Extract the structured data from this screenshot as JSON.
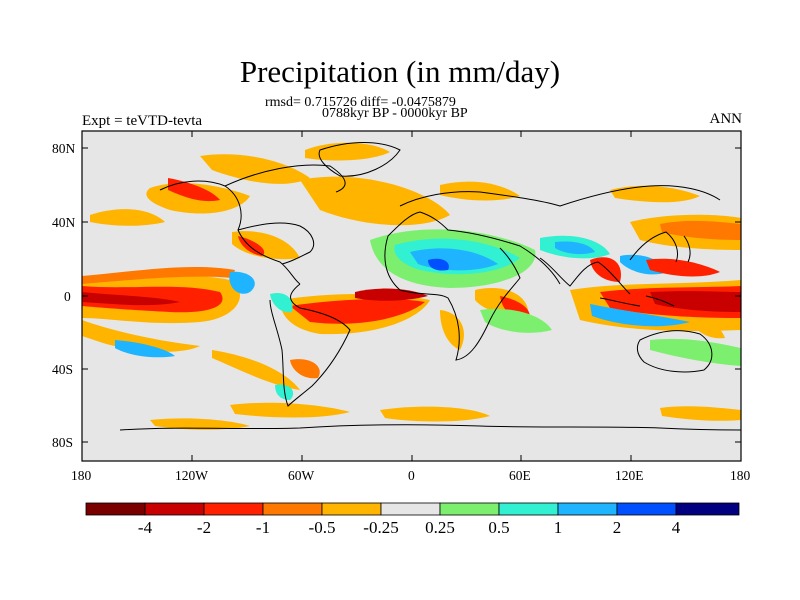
{
  "title": "Precipitation (in mm/day)",
  "stats_line": "rmsd= 0.715726 diff= -0.0475879",
  "period_line": "0788kyr BP - 0000kyr BP",
  "left_label": "Expt = teVTD-tevta",
  "right_label": "ANN",
  "y_ticks": [
    "80N",
    "40N",
    "0",
    "40S",
    "80S"
  ],
  "x_ticks": [
    "180",
    "120W",
    "60W",
    "0",
    "60E",
    "120E",
    "180"
  ],
  "colorbar": {
    "labels": [
      "-4",
      "-2",
      "-1",
      "-0.5",
      "-0.25",
      "0.25",
      "0.5",
      "1",
      "2",
      "4"
    ],
    "colors": [
      "#7a0000",
      "#c80000",
      "#ff2000",
      "#ff7800",
      "#ffb400",
      "#e6e6e6",
      "#7cf06e",
      "#32f0d2",
      "#1eb4ff",
      "#0050ff",
      "#000080"
    ]
  },
  "background_color": "#e6e6e6"
}
